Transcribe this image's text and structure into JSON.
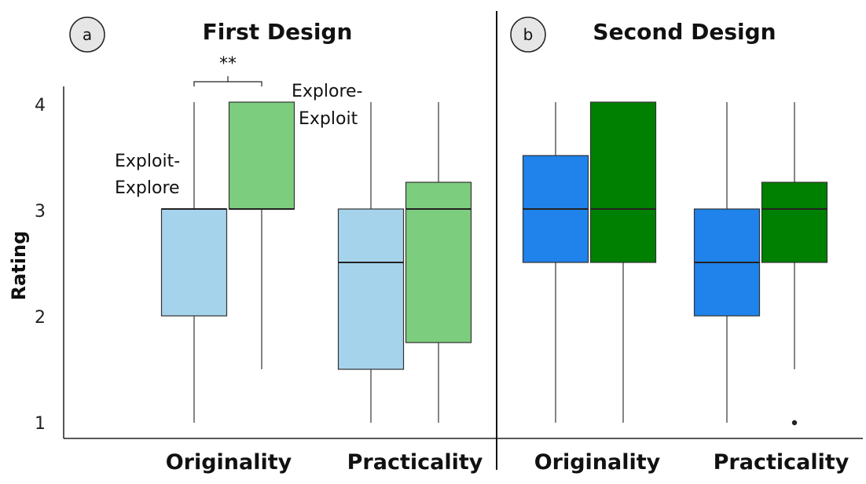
{
  "chart_data": [
    {
      "type": "box",
      "panel_label": "a",
      "title": "First Design",
      "ylabel": "Rating",
      "ylim": [
        1,
        4
      ],
      "yticks": [
        "1",
        "2",
        "3",
        "4"
      ],
      "categories": [
        "Originality",
        "Practicality"
      ],
      "series": [
        {
          "name": "Exploit-Explore",
          "color": "#a6d3ec",
          "boxes": [
            {
              "min": 1,
              "q1": 2,
              "median": 3,
              "q3": 3,
              "max": 4,
              "outliers": []
            },
            {
              "min": 1,
              "q1": 1.5,
              "median": 2.5,
              "q3": 3,
              "max": 4,
              "outliers": []
            }
          ]
        },
        {
          "name": "Explore-Exploit",
          "color": "#7dcd7e",
          "boxes": [
            {
              "min": 1.5,
              "q1": 3,
              "median": 3,
              "q3": 4,
              "max": 4,
              "outliers": []
            },
            {
              "min": 1,
              "q1": 1.75,
              "median": 3,
              "q3": 3.25,
              "max": 4,
              "outliers": []
            }
          ]
        }
      ],
      "annotations": {
        "significance": "**",
        "label_exploit_explore": [
          "Exploit-",
          "Explore"
        ],
        "label_explore_exploit": [
          "Explore-",
          "Exploit"
        ]
      }
    },
    {
      "type": "box",
      "panel_label": "b",
      "title": "Second Design",
      "ylim": [
        1,
        4
      ],
      "categories": [
        "Originality",
        "Practicality"
      ],
      "series": [
        {
          "name": "Exploit-Explore",
          "color": "#1f83eb",
          "boxes": [
            {
              "min": 1,
              "q1": 2.5,
              "median": 3,
              "q3": 3.5,
              "max": 4,
              "outliers": []
            },
            {
              "min": 1,
              "q1": 2,
              "median": 2.5,
              "q3": 3,
              "max": 4,
              "outliers": []
            }
          ]
        },
        {
          "name": "Explore-Exploit",
          "color": "#008000",
          "boxes": [
            {
              "min": 1,
              "q1": 2.5,
              "median": 3,
              "q3": 4,
              "max": 4,
              "outliers": []
            },
            {
              "min": 1.5,
              "q1": 2.5,
              "median": 3,
              "q3": 3.25,
              "max": 4,
              "outliers": [
                1
              ]
            }
          ]
        }
      ]
    }
  ]
}
